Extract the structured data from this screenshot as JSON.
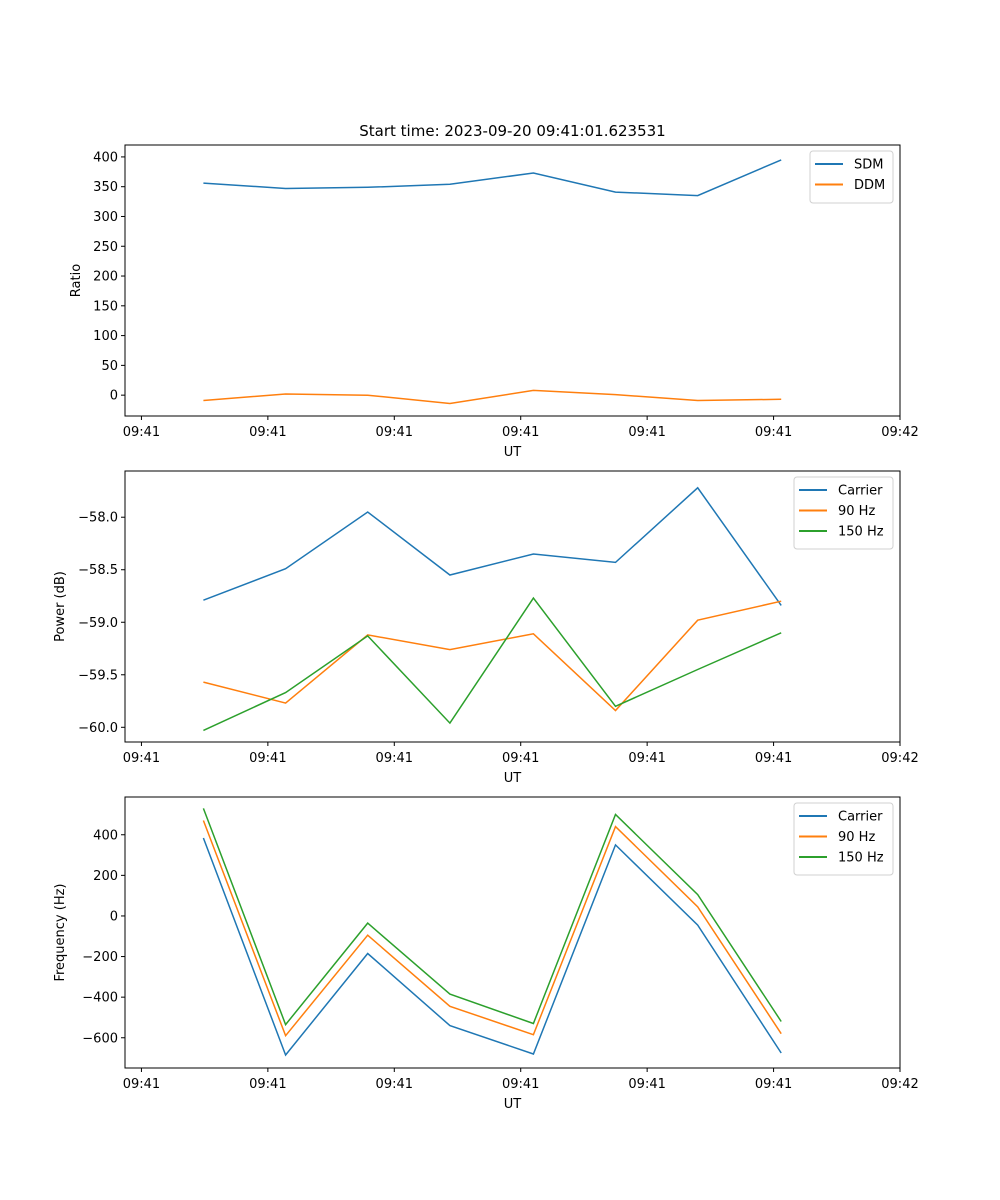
{
  "title": "Start time: 2023-09-20 09:41:01.623531",
  "colors": {
    "blue": "#1f77b4",
    "orange": "#ff7f0e",
    "green": "#2ca02c"
  },
  "chart_data": [
    {
      "type": "line",
      "title": "Start time: 2023-09-20 09:41:01.623531",
      "xlabel": "UT",
      "ylabel": "Ratio",
      "x_unit": "seconds after 09:41:00",
      "x": [
        4.9,
        11.4,
        17.9,
        24.4,
        31.0,
        37.5,
        44.0,
        50.6
      ],
      "xlim": [
        -1.3,
        60
      ],
      "xticks": [
        0,
        10,
        20,
        30,
        40,
        50,
        60
      ],
      "xtick_labels": [
        "09:41",
        "09:41",
        "09:41",
        "09:41",
        "09:41",
        "09:41",
        "09:42"
      ],
      "ylim": [
        -35,
        420
      ],
      "yticks": [
        0,
        50,
        100,
        150,
        200,
        250,
        300,
        350,
        400
      ],
      "ytick_labels": [
        "0",
        "50",
        "100",
        "150",
        "200",
        "250",
        "300",
        "350",
        "400"
      ],
      "legend": "top-right",
      "series": [
        {
          "name": "SDM",
          "color": "#1f77b4",
          "values": [
            356,
            347,
            349,
            354,
            373,
            341,
            335,
            395
          ]
        },
        {
          "name": "DDM",
          "color": "#ff7f0e",
          "values": [
            -9,
            2,
            0,
            -14,
            8,
            1,
            -9,
            -7
          ]
        }
      ]
    },
    {
      "type": "line",
      "xlabel": "UT",
      "ylabel": "Power (dB)",
      "x": [
        4.9,
        11.4,
        17.9,
        24.4,
        31.0,
        37.5,
        44.0,
        50.6
      ],
      "xlim": [
        -1.3,
        60
      ],
      "xticks": [
        0,
        10,
        20,
        30,
        40,
        50,
        60
      ],
      "xtick_labels": [
        "09:41",
        "09:41",
        "09:41",
        "09:41",
        "09:41",
        "09:41",
        "09:42"
      ],
      "ylim": [
        -60.14,
        -57.56
      ],
      "yticks": [
        -60.0,
        -59.5,
        -59.0,
        -58.5,
        -58.0
      ],
      "ytick_labels": [
        "−60.0",
        "−59.5",
        "−59.0",
        "−58.5",
        "−58.0"
      ],
      "legend": "top-right",
      "series": [
        {
          "name": "Carrier",
          "color": "#1f77b4",
          "values": [
            -58.79,
            -58.49,
            -57.95,
            -58.55,
            -58.35,
            -58.43,
            -57.72,
            -58.84
          ]
        },
        {
          "name": "90 Hz",
          "color": "#ff7f0e",
          "values": [
            -59.57,
            -59.77,
            -59.12,
            -59.26,
            -59.11,
            -59.84,
            -58.98,
            -58.8
          ]
        },
        {
          "name": "150 Hz",
          "color": "#2ca02c",
          "values": [
            -60.03,
            -59.67,
            -59.13,
            -59.96,
            -58.77,
            -59.8,
            -59.45,
            -59.1
          ]
        }
      ]
    },
    {
      "type": "line",
      "xlabel": "UT",
      "ylabel": "Frequency (Hz)",
      "x": [
        4.9,
        11.4,
        17.9,
        24.4,
        31.0,
        37.5,
        44.0,
        50.6
      ],
      "xlim": [
        -1.3,
        60
      ],
      "xticks": [
        0,
        10,
        20,
        30,
        40,
        50,
        60
      ],
      "xtick_labels": [
        "09:41",
        "09:41",
        "09:41",
        "09:41",
        "09:41",
        "09:41",
        "09:42"
      ],
      "ylim": [
        -749,
        586
      ],
      "yticks": [
        -600,
        -400,
        -200,
        0,
        200,
        400
      ],
      "ytick_labels": [
        "−600",
        "−400",
        "−200",
        "0",
        "200",
        "400"
      ],
      "legend": "top-right",
      "series": [
        {
          "name": "Carrier",
          "color": "#1f77b4",
          "values": [
            384,
            -685,
            -185,
            -540,
            -680,
            350,
            -45,
            -675
          ]
        },
        {
          "name": "90 Hz",
          "color": "#ff7f0e",
          "values": [
            470,
            -590,
            -95,
            -445,
            -585,
            440,
            45,
            -580
          ]
        },
        {
          "name": "150 Hz",
          "color": "#2ca02c",
          "values": [
            530,
            -535,
            -35,
            -385,
            -530,
            500,
            105,
            -520
          ]
        }
      ]
    }
  ]
}
